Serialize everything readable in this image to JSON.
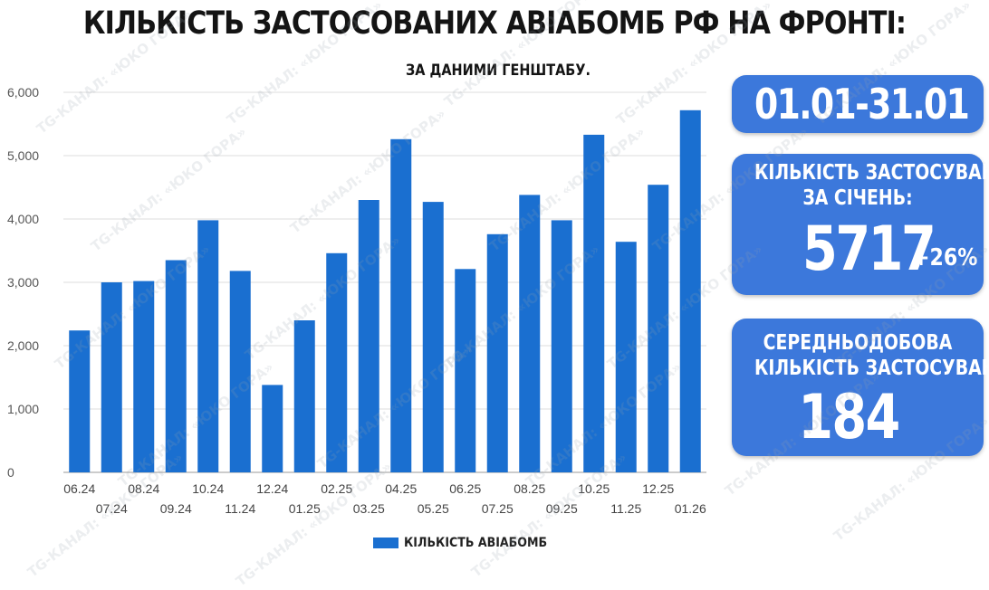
{
  "header": {
    "title": "КІЛЬКІСТЬ ЗАСТОСОВАНИХ АВІАБОМБ РФ НА ФРОНТІ:",
    "subtitle": "ЗА ДАНИМИ ГЕНШТАБУ."
  },
  "panels": {
    "period": "01.01-31.01",
    "monthly_label_line1": "КІЛЬКІСТЬ ЗАСТОСУВАНЬ",
    "monthly_label_line2": "ЗА СІЧЕНЬ:",
    "monthly_value": "5717",
    "monthly_change": "+26%",
    "daily_label_line1": "СЕРЕДНЬОДОБОВА",
    "daily_label_line2": "КІЛЬКІСТЬ ЗАСТОСУВАНЬ:",
    "daily_value": "184"
  },
  "watermark": "TG-КАНАЛ: «ЮКО ГОРА»",
  "colors": {
    "bar": "#1a6fd0",
    "panel": "#3c78db"
  },
  "chart_data": {
    "type": "bar",
    "categories": [
      "06.24",
      "07.24",
      "08.24",
      "09.24",
      "10.24",
      "11.24",
      "12.24",
      "01.25",
      "02.25",
      "03.25",
      "04.25",
      "05.25",
      "06.25",
      "07.25",
      "08.25",
      "09.25",
      "10.25",
      "11.25",
      "12.25",
      "01.26"
    ],
    "series": [
      {
        "name": "КІЛЬКІСТЬ АВІАБОМБ",
        "values": [
          2240,
          3000,
          3020,
          3350,
          3980,
          3180,
          1380,
          2400,
          3460,
          4300,
          5260,
          4270,
          3210,
          3760,
          4380,
          3980,
          5330,
          3640,
          4540,
          5717
        ]
      }
    ],
    "yticks": [
      "0",
      "1,000",
      "2,000",
      "3,000",
      "4,000",
      "5,000",
      "6,000"
    ],
    "ylim": [
      0,
      6000
    ],
    "grid": true,
    "legend": "bottom"
  }
}
